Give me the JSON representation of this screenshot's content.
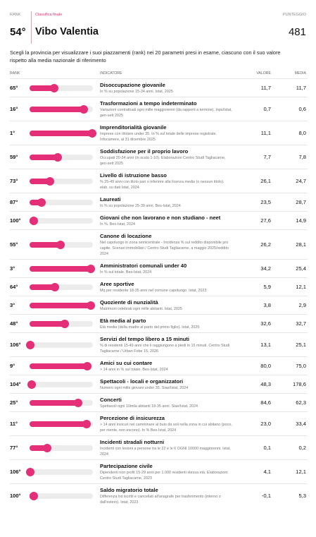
{
  "header": {
    "rank_label": "RANK",
    "ranking_label": "Classifica finale",
    "score_label": "PUNTEGGIO",
    "rank": "54°",
    "province": "Vibo Valentia",
    "score": "481"
  },
  "intro": "Scegli la provincia per visualizzare i suoi piazzamenti (rank) nei 20 parametri presi in esame, ciascuno con il suo valore rispetto alla media nazionale di riferimento",
  "table": {
    "columns": [
      "RANK",
      "INDICATORE",
      "VALORE",
      "MEDIA"
    ],
    "rows": [
      {
        "rank": {
          "value": 65,
          "label": "65°"
        },
        "title": "Disoccupazione giovanile",
        "note": "In % su popolazione 15-34 anni. Istat, 2025",
        "value": "11,7",
        "average": "11,7"
      },
      {
        "rank": {
          "value": 16,
          "label": "16°"
        },
        "title": "Trasformazioni a tempo indeterminato",
        "note": "Variazioni contrattuali ogni mille maggiorenni (da rapporti a termine). Inps/Istat, gen-sett 2025",
        "value": "0,7",
        "average": "0,6"
      },
      {
        "rank": {
          "value": 1,
          "label": "1°"
        },
        "title": "Imprenditorialità giovanile",
        "note": "Imprese con titolare under 35. In % sul totale delle imprese registrate. Infocamere, al 31 dicembre 2025",
        "value": "11,1",
        "average": "8,0"
      },
      {
        "rank": {
          "value": 59,
          "label": "59°"
        },
        "title": "Soddisfazione per il proprio lavoro",
        "note": "Occupati 20-34 anni (in scala 1-10). Elaborazioni Centro Studi Tagliacarne, gen-sett 2025",
        "value": "7,7",
        "average": "7,8"
      },
      {
        "rank": {
          "value": 73,
          "label": "73°"
        },
        "title": "Livello di istruzione basso",
        "note": "% 25-49 anni con titolo pari o inferiore alla licenza media (o nessun titolo). elab. su dati Istat, 2024",
        "value": "26,1",
        "average": "24,7"
      },
      {
        "rank": {
          "value": 87,
          "label": "87°"
        },
        "title": "Laureati",
        "note": "In % su popolazione 25-39 anni. Bes-Istat, 2024",
        "value": "23,5",
        "average": "28,7"
      },
      {
        "rank": {
          "value": 100,
          "label": "100°"
        },
        "title": "Giovani che non lavorano e non studiano - neet",
        "note": "In %. Bes-Istat, 2024",
        "value": "27,6",
        "average": "14,9"
      },
      {
        "rank": {
          "value": 55,
          "label": "55°"
        },
        "title": "Canone di locazione",
        "note": "Nel capoluogo in zona semicentrale - Incidenza % sul reddito disponibile pro capite. Scenari immobiliari / Centro Studi Tagliacarne, a maggio 2025/reddito 2024",
        "value": "26,2",
        "average": "28,1"
      },
      {
        "rank": {
          "value": 3,
          "label": "3°"
        },
        "title": "Amministratori comunali under 40",
        "note": "In % sul totale. Bes-Istat, 2024",
        "value": "34,2",
        "average": "25,4"
      },
      {
        "rank": {
          "value": 64,
          "label": "64°"
        },
        "title": "Aree sportive",
        "note": "Mq per residente 18-35 anni nel comune capoluogo. Istat, 2023",
        "value": "5,9",
        "average": "12,1"
      },
      {
        "rank": {
          "value": 3,
          "label": "3°"
        },
        "title": "Quoziente di nunzialità",
        "note": "Matrimoni celebrati ogni mille abitanti. Istat, 2025",
        "value": "3,8",
        "average": "2,9"
      },
      {
        "rank": {
          "value": 48,
          "label": "48°"
        },
        "title": "Età media al parto",
        "note": "Età media (della madre al parto del primo figlio). Istat, 2025",
        "value": "32,6",
        "average": "32,7"
      },
      {
        "rank": {
          "value": 106,
          "label": "106°"
        },
        "title": "Servizi del tempo libero a 15 minuti",
        "note": "% di residenti 15-49 anni che li raggiungono a piedi in 15 minuti. Centro Studi Tagliacarne / Urban Fobe 15, 2026",
        "value": "13,1",
        "average": "25,1"
      },
      {
        "rank": {
          "value": 9,
          "label": "9°"
        },
        "title": "Amici su cui contare",
        "note": "> 14 anni in % sul totale. Bes-Istat, 2024",
        "value": "80,0",
        "average": "75,0"
      },
      {
        "rank": {
          "value": 104,
          "label": "104°"
        },
        "title": "Spettacoli - locali e organizzatori",
        "note": "Numero ogni mille giovani under 35. Siae/Istat, 2024",
        "value": "48,3",
        "average": "178,6"
      },
      {
        "rank": {
          "value": 25,
          "label": "25°"
        },
        "title": "Concerti",
        "note": "Spettacoli ogni 10mila abitanti 18-35 anni. Siae/Istat, 2024",
        "value": "84,6",
        "average": "62,3"
      },
      {
        "rank": {
          "value": 11,
          "label": "11°"
        },
        "title": "Percezione di insicurezza",
        "note": "> 14 anni insicuri nel camminare al buio da soli nella zona in cui abitano (poco, per niente, non escono). In % Bes-Istat, 2024",
        "value": "23,0",
        "average": "33,4"
      },
      {
        "rank": {
          "value": 77,
          "label": "77°"
        },
        "title": "Incidenti stradali notturni",
        "note": "Incidenti con lesioni a persone tra le 22 e le 6 OGNI 10000 maggiorenni. Istat, 2024",
        "value": "0,1",
        "average": "0,2"
      },
      {
        "rank": {
          "value": 106,
          "label": "106°"
        },
        "title": "Partecipazione civile",
        "note": "Dipendenti non profit 15-29 anni per 1.000 residenti stessa età. Elaborazioni Centro Studi Tagliacarne, 2023",
        "value": "4,1",
        "average": "12,1"
      },
      {
        "rank": {
          "value": 100,
          "label": "100°"
        },
        "title": "Saldo migratorio totale",
        "note": "Differenza tra iscritti e cancellati all'anagrafe per trasferimento (interno o dall'estero). Istat, 2023",
        "value": "-0,1",
        "average": "5,3"
      }
    ]
  }
}
